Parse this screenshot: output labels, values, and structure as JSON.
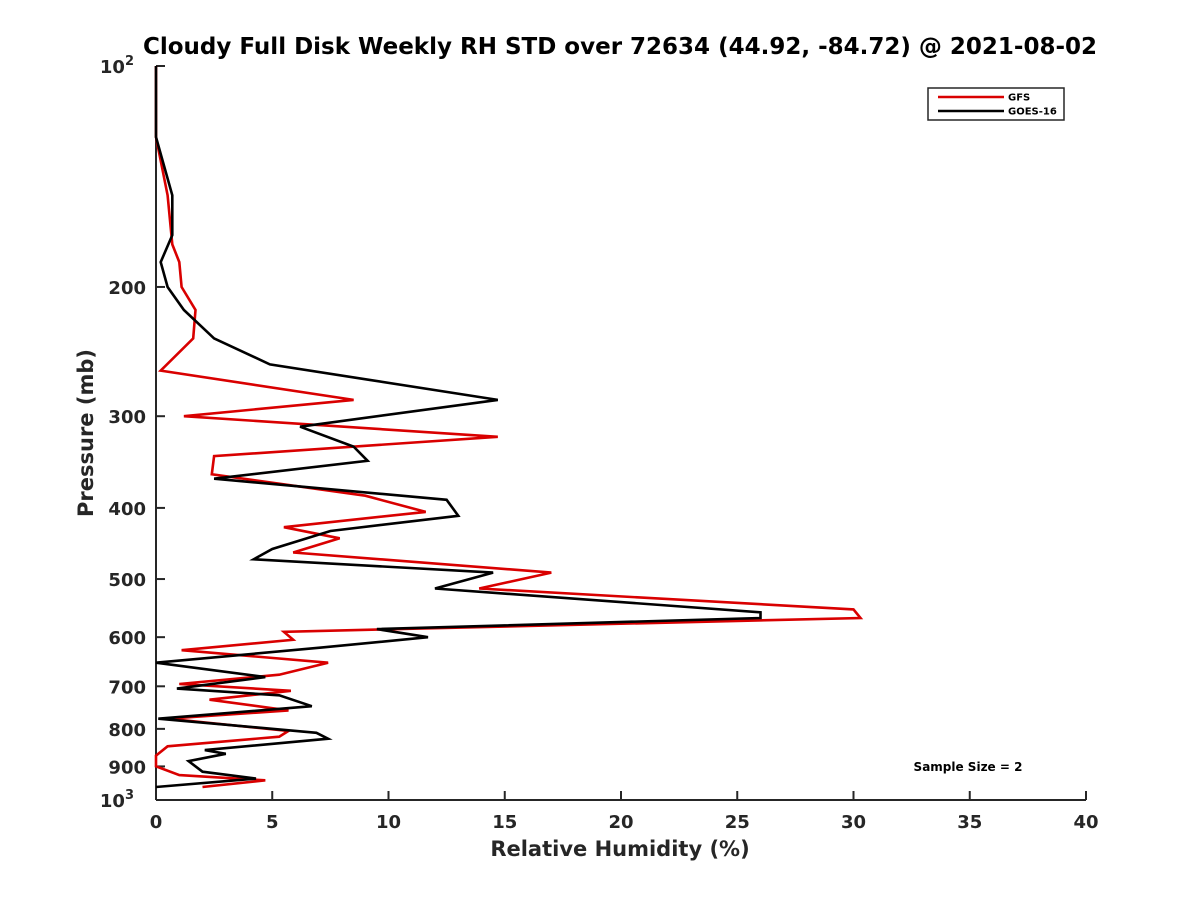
{
  "chart_data": {
    "type": "line",
    "title": "Cloudy Full Disk Weekly RH STD over 72634 (44.92, -84.72) @ 2021-08-02",
    "xlabel": "Relative Humidity (%)",
    "ylabel": "Pressure (mb)",
    "xlim": [
      0,
      40
    ],
    "ylim": [
      100,
      1000
    ],
    "y_scale": "log",
    "y_reversed": true,
    "grid": false,
    "legend_position": "top-right",
    "x_ticks": [
      "0",
      "5",
      "10",
      "15",
      "20",
      "25",
      "30",
      "35",
      "40"
    ],
    "y_ticks": [
      {
        "value": 100,
        "base": "10",
        "exp": "2"
      },
      {
        "value": 200,
        "label": "200"
      },
      {
        "value": 300,
        "label": "300"
      },
      {
        "value": 400,
        "label": "400"
      },
      {
        "value": 500,
        "label": "500"
      },
      {
        "value": 600,
        "label": "600"
      },
      {
        "value": 700,
        "label": "700"
      },
      {
        "value": 800,
        "label": "800"
      },
      {
        "value": 900,
        "label": "900"
      },
      {
        "value": 1000,
        "base": "10",
        "exp": "3"
      }
    ],
    "annotation": "Sample Size = 2",
    "series": [
      {
        "name": "GFS",
        "color": "#d90000",
        "points": [
          [
            0,
            100
          ],
          [
            0,
            125
          ],
          [
            0.5,
            150
          ],
          [
            0.7,
            175
          ],
          [
            1.0,
            185
          ],
          [
            1.1,
            200
          ],
          [
            1.7,
            215
          ],
          [
            1.6,
            235
          ],
          [
            0.2,
            260
          ],
          [
            8.5,
            285
          ],
          [
            1.2,
            300
          ],
          [
            14.7,
            320
          ],
          [
            2.5,
            340
          ],
          [
            2.4,
            360
          ],
          [
            9.0,
            385
          ],
          [
            11.6,
            405
          ],
          [
            5.5,
            425
          ],
          [
            7.9,
            440
          ],
          [
            5.9,
            460
          ],
          [
            17.0,
            490
          ],
          [
            13.9,
            515
          ],
          [
            30.0,
            550
          ],
          [
            30.3,
            565
          ],
          [
            5.5,
            590
          ],
          [
            5.9,
            605
          ],
          [
            1.1,
            625
          ],
          [
            7.4,
            650
          ],
          [
            5.3,
            675
          ],
          [
            1.0,
            695
          ],
          [
            5.8,
            710
          ],
          [
            2.3,
            730
          ],
          [
            5.7,
            755
          ],
          [
            0.5,
            775
          ],
          [
            5.7,
            805
          ],
          [
            5.3,
            820
          ],
          [
            0.5,
            845
          ],
          [
            0,
            870
          ],
          [
            0,
            900
          ],
          [
            1.0,
            925
          ],
          [
            4.7,
            940
          ],
          [
            2.0,
            960
          ]
        ]
      },
      {
        "name": "GOES-16",
        "color": "#000000",
        "points": [
          [
            0,
            100
          ],
          [
            0,
            125
          ],
          [
            0.7,
            150
          ],
          [
            0.7,
            170
          ],
          [
            0.2,
            185
          ],
          [
            0.5,
            200
          ],
          [
            1.2,
            215
          ],
          [
            2.5,
            235
          ],
          [
            4.9,
            255
          ],
          [
            14.7,
            285
          ],
          [
            6.2,
            310
          ],
          [
            8.5,
            330
          ],
          [
            9.1,
            345
          ],
          [
            2.5,
            365
          ],
          [
            12.5,
            390
          ],
          [
            13.0,
            410
          ],
          [
            7.5,
            430
          ],
          [
            5.0,
            455
          ],
          [
            4.2,
            470
          ],
          [
            14.5,
            490
          ],
          [
            12.0,
            515
          ],
          [
            26.0,
            555
          ],
          [
            26.0,
            565
          ],
          [
            9.5,
            585
          ],
          [
            11.7,
            600
          ],
          [
            7.1,
            620
          ],
          [
            0,
            650
          ],
          [
            4.7,
            680
          ],
          [
            0.9,
            705
          ],
          [
            5.3,
            720
          ],
          [
            6.7,
            745
          ],
          [
            0.1,
            775
          ],
          [
            6.9,
            810
          ],
          [
            7.4,
            825
          ],
          [
            2.1,
            855
          ],
          [
            3.0,
            865
          ],
          [
            1.4,
            885
          ],
          [
            2.0,
            915
          ],
          [
            4.3,
            935
          ],
          [
            0,
            960
          ]
        ]
      }
    ]
  }
}
